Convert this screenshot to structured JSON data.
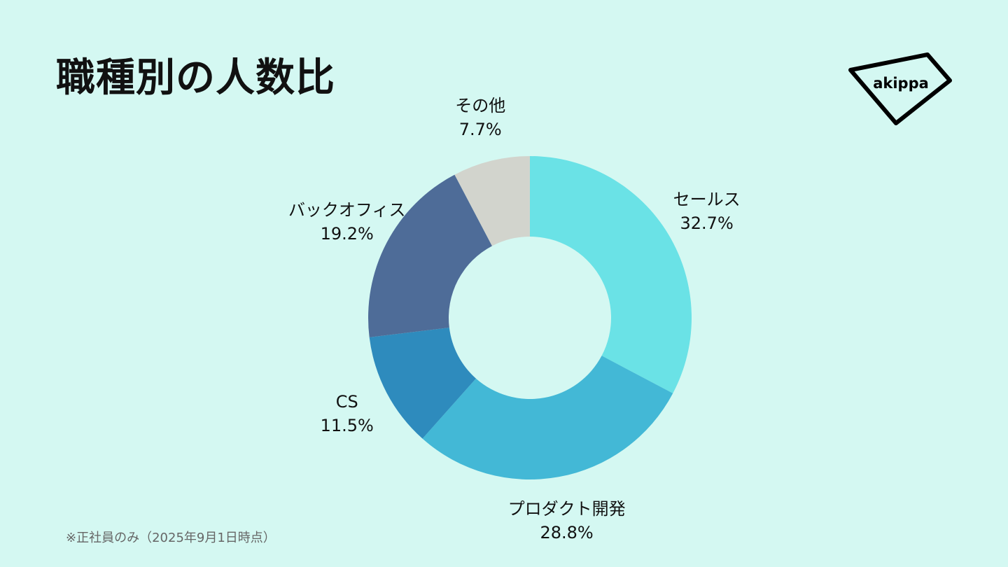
{
  "title": "職種別の人数比",
  "logo": {
    "text": "akippa"
  },
  "footnote": "※正社員のみ（2025年9月1日時点）",
  "colors": {
    "background": "#d4f8f2",
    "segments": [
      "#6ae2e6",
      "#43b8d6",
      "#2e8bbd",
      "#4e6c98",
      "#d2d4cd"
    ]
  },
  "chart_data": {
    "type": "pie",
    "hole": true,
    "categories": [
      "セールス",
      "プロダクト開発",
      "CS",
      "バックオフィス",
      "その他"
    ],
    "values": [
      32.7,
      28.8,
      11.5,
      19.2,
      7.7
    ],
    "value_labels": [
      "32.7%",
      "28.8%",
      "11.5%",
      "19.2%",
      "7.7%"
    ],
    "title": "職種別の人数比"
  }
}
